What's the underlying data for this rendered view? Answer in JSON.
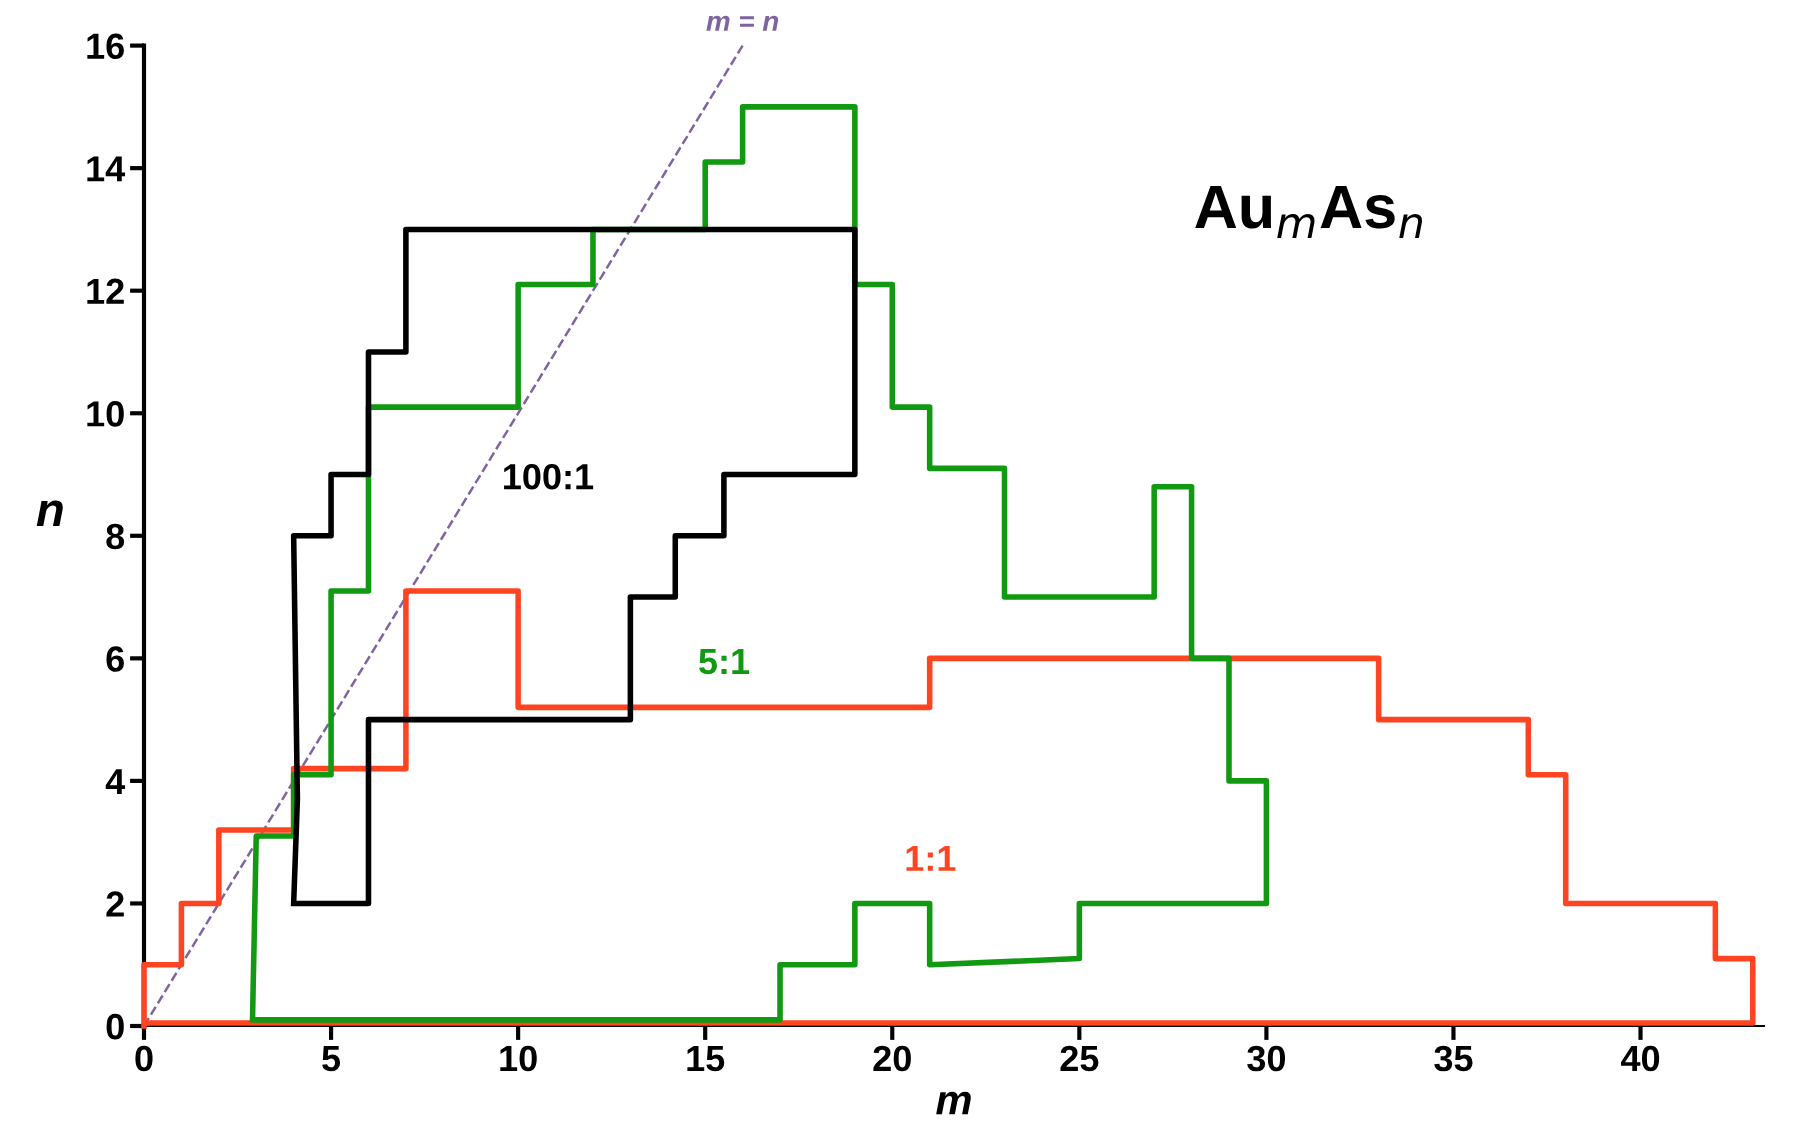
{
  "chart_data": {
    "type": "line",
    "xlabel": "m",
    "ylabel": "n",
    "xlim": [
      0,
      43.3
    ],
    "ylim": [
      0,
      16
    ],
    "xticks": [
      0,
      5,
      10,
      15,
      20,
      25,
      30,
      35,
      40
    ],
    "yticks": [
      0,
      2,
      4,
      6,
      8,
      10,
      12,
      14,
      16
    ],
    "grid": false,
    "legend": false,
    "marker": "none",
    "annotations": [
      "Au$_{m}$As$_{n}$"
    ],
    "series": [
      {
        "name": "100:1",
        "color": "#000000",
        "x": [
          4.05,
          6,
          6,
          13,
          13,
          14.2,
          14.2,
          15.5,
          15.5,
          19,
          19,
          7,
          7,
          6,
          6,
          5,
          5,
          4,
          4.1,
          4
        ],
        "values": [
          2,
          2,
          5,
          5,
          7,
          7,
          8,
          8,
          9,
          9,
          13,
          13,
          11,
          11,
          9,
          9,
          8,
          8,
          3.7,
          2
        ]
      },
      {
        "name": "5:1",
        "color": "#119911",
        "x": [
          2.95,
          17,
          17,
          19,
          19,
          21,
          21,
          25,
          25,
          30,
          30,
          29,
          29,
          28,
          28,
          27,
          27,
          23,
          23,
          21,
          21,
          20,
          20,
          19,
          19,
          16,
          16,
          15,
          15,
          12,
          12,
          10,
          10,
          6,
          6,
          5,
          5,
          4,
          4,
          3,
          2.9
        ],
        "values": [
          0.1,
          0.1,
          1,
          1,
          2,
          2,
          1,
          1.1,
          2,
          2,
          4,
          4,
          6,
          6,
          8.8,
          8.8,
          7,
          7,
          9.1,
          9.1,
          10.1,
          10.1,
          12.1,
          12.1,
          15,
          15,
          14.1,
          14.1,
          13,
          13,
          12.1,
          12.1,
          10.1,
          10.1,
          7.1,
          7.1,
          4.1,
          4.1,
          3.1,
          3.1,
          0.1
        ]
      },
      {
        "name": "1:1",
        "color": "#ff4422",
        "x": [
          0,
          0,
          1,
          1,
          2,
          2,
          4,
          4,
          7,
          7,
          10,
          10,
          21,
          21,
          33,
          33,
          37,
          37,
          38,
          38,
          42,
          42,
          43,
          43,
          0
        ],
        "values": [
          0,
          1,
          1,
          2,
          2,
          3.2,
          3.2,
          4.2,
          4.2,
          7.1,
          7.1,
          5.2,
          5.2,
          6,
          6,
          5,
          5,
          4.1,
          4.1,
          2,
          2,
          1.1,
          1.1,
          0.05,
          0.05
        ]
      },
      {
        "name": "m = n",
        "color": "#8064a2",
        "line_style": "dashed",
        "x": [
          0,
          16
        ],
        "values": [
          0,
          16
        ]
      }
    ]
  }
}
